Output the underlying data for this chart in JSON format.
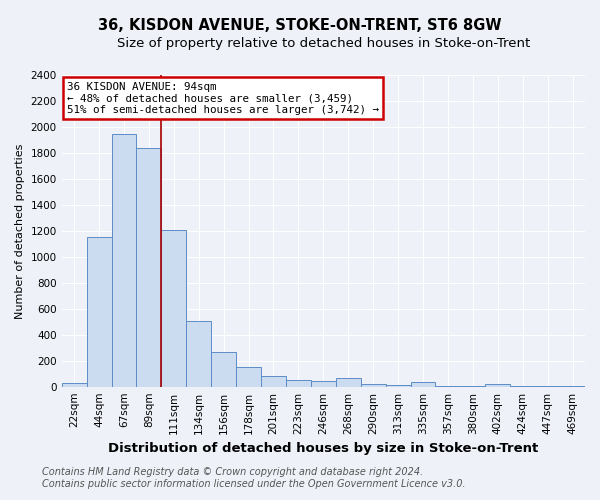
{
  "title": "36, KISDON AVENUE, STOKE-ON-TRENT, ST6 8GW",
  "subtitle": "Size of property relative to detached houses in Stoke-on-Trent",
  "xlabel": "Distribution of detached houses by size in Stoke-on-Trent",
  "ylabel": "Number of detached properties",
  "categories": [
    "22sqm",
    "44sqm",
    "67sqm",
    "89sqm",
    "111sqm",
    "134sqm",
    "156sqm",
    "178sqm",
    "201sqm",
    "223sqm",
    "246sqm",
    "268sqm",
    "290sqm",
    "313sqm",
    "335sqm",
    "357sqm",
    "380sqm",
    "402sqm",
    "424sqm",
    "447sqm",
    "469sqm"
  ],
  "values": [
    25,
    1150,
    1950,
    1840,
    1210,
    510,
    265,
    155,
    80,
    50,
    45,
    70,
    20,
    15,
    35,
    2,
    2,
    20,
    2,
    2,
    2
  ],
  "bar_color": "#ccdcf0",
  "bar_edge_color": "#5b8cc8",
  "red_line_x": 3.5,
  "annotation_line1": "36 KISDON AVENUE: 94sqm",
  "annotation_line2": "← 48% of detached houses are smaller (3,459)",
  "annotation_line3": "51% of semi-detached houses are larger (3,742) →",
  "annotation_box_color": "#ffffff",
  "annotation_box_edge_color": "#cc0000",
  "footer_line1": "Contains HM Land Registry data © Crown copyright and database right 2024.",
  "footer_line2": "Contains public sector information licensed under the Open Government Licence v3.0.",
  "ylim": [
    0,
    2400
  ],
  "yticks": [
    0,
    200,
    400,
    600,
    800,
    1000,
    1200,
    1400,
    1600,
    1800,
    2000,
    2200,
    2400
  ],
  "background_color": "#eef2f8",
  "grid_color": "#ffffff",
  "title_fontsize": 10.5,
  "subtitle_fontsize": 9.5,
  "xlabel_fontsize": 9.5,
  "ylabel_fontsize": 8,
  "tick_fontsize": 7.5,
  "footer_fontsize": 7
}
